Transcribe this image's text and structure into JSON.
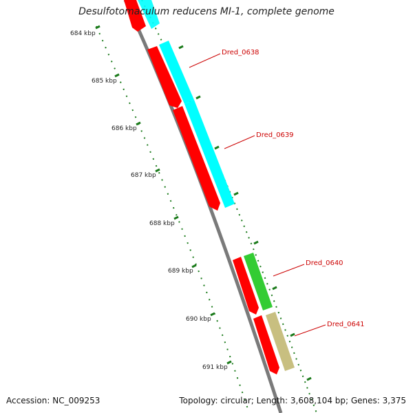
{
  "title": "Desulfotomaculum reducens MI-1, complete genome",
  "footer": {
    "accession": "Accession: NC_009253",
    "stats": "Topology: circular; Length: 3,608,104 bp; Genes: 3,375"
  },
  "ruler": {
    "ticks": [
      "684 kbp",
      "685 kbp",
      "686 kbp",
      "687 kbp",
      "688 kbp",
      "689 kbp",
      "690 kbp",
      "691 kbp"
    ]
  },
  "genes": [
    {
      "label": "Dred_0638"
    },
    {
      "label": "Dred_0639"
    },
    {
      "label": "Dred_0640"
    },
    {
      "label": "Dred_0641"
    }
  ],
  "colors": {
    "backbone": "#8c8c8c",
    "cds": "#ff0000",
    "feature_cyan": "#00ffff",
    "feature_green": "#33cc33",
    "feature_tan": "#c8bf80",
    "tick": "#1a7a1a",
    "gene_label": "#cc0000"
  }
}
